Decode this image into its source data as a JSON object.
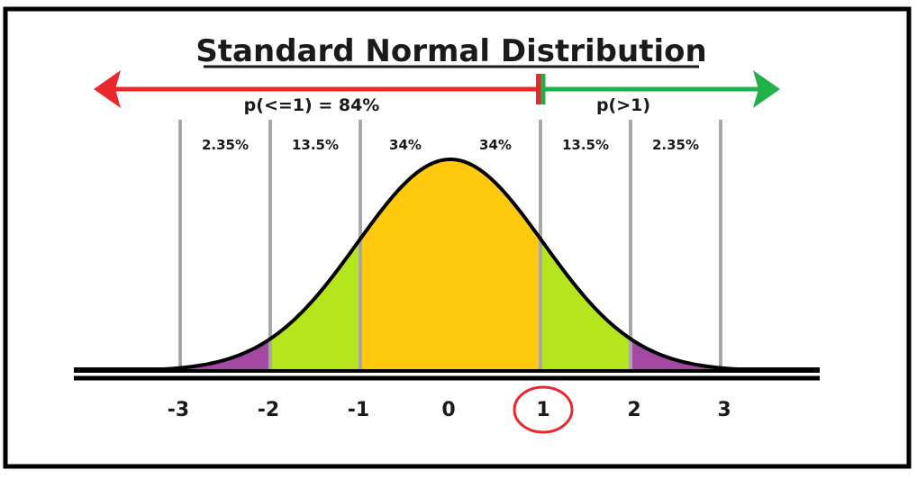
{
  "title": "Standard Normal Distribution",
  "arrows": {
    "left": {
      "label": "p(<=1) = 84%",
      "color": "#e8282d"
    },
    "right": {
      "label": "p(>1)",
      "color": "#22b04b"
    }
  },
  "regions": [
    {
      "from": -3,
      "to": -2,
      "label": "2.35%",
      "color": "#a349a4"
    },
    {
      "from": -2,
      "to": -1,
      "label": "13.5%",
      "color": "#b5e61d"
    },
    {
      "from": -1,
      "to": 0,
      "label": "34%",
      "color": "#ffc90e"
    },
    {
      "from": 0,
      "to": 1,
      "label": "34%",
      "color": "#ffc90e"
    },
    {
      "from": 1,
      "to": 2,
      "label": "13.5%",
      "color": "#b5e61d"
    },
    {
      "from": 2,
      "to": 3,
      "label": "2.35%",
      "color": "#a349a4"
    }
  ],
  "ticks": [
    "-3",
    "-2",
    "-1",
    "0",
    "1",
    "2",
    "3"
  ],
  "highlighted_tick": "1",
  "highlight_color": "#e8282d"
}
